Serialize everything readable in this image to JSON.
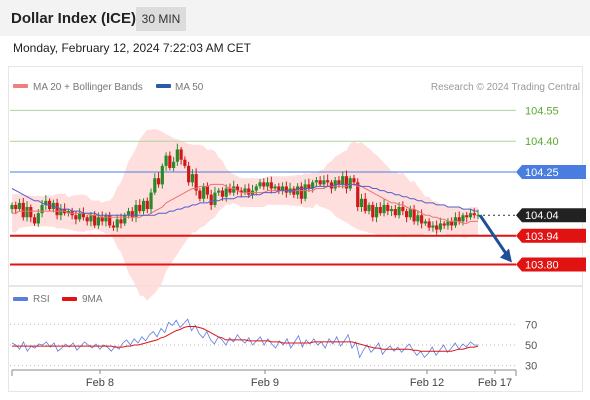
{
  "header": {
    "title": "Dollar Index (ICE)",
    "timeframe": "30 MIN"
  },
  "datetime": "Monday, February 12, 2024 7:22:03 AM CET",
  "credit": "Research © 2024 Trading Central",
  "colors": {
    "up": "#2a8a2a",
    "down": "#d01818",
    "neutral": "#222222",
    "resistance_line": "#a9d79a",
    "pivot_line": "#4a7de0",
    "support_line": "#e01212",
    "bollinger_fill": "#ffd8d8",
    "ma20": "#f07070",
    "ma50": "#5060c8",
    "arrow": "#1f4f99",
    "rsi": "#5a7ee0",
    "rsi_ma": "#e01212"
  },
  "chart_data": [
    {
      "type": "candlestick",
      "legend": [
        {
          "label": "MA 20 + Bollinger Bands",
          "color": "#f08080"
        },
        {
          "label": "MA 50",
          "color": "#2a5aa8"
        }
      ],
      "x_tick_labels": [
        "Feb 8",
        "Feb 9",
        "Feb 12",
        "Feb 17"
      ],
      "ylim": [
        103.72,
        104.62
      ],
      "levels": [
        {
          "value": 104.55,
          "label": "104.55",
          "kind": "resistance"
        },
        {
          "value": 104.4,
          "label": "104.40",
          "kind": "resistance"
        },
        {
          "value": 104.25,
          "label": "104.25",
          "kind": "pivot"
        },
        {
          "value": 104.04,
          "label": "104.04",
          "kind": "last"
        },
        {
          "value": 103.94,
          "label": "103.94",
          "kind": "support"
        },
        {
          "value": 103.8,
          "label": "103.80",
          "kind": "support"
        }
      ],
      "close_series": [
        104.09,
        104.07,
        104.1,
        104.03,
        104.08,
        104.03,
        104.0,
        104.05,
        104.09,
        104.11,
        104.07,
        104.1,
        104.04,
        104.07,
        104.05,
        104.06,
        104.04,
        104.02,
        104.05,
        104.03,
        104.01,
        104.04,
        103.99,
        104.03,
        104.01,
        104.04,
        103.99,
        103.98,
        104.02,
        104.0,
        104.04,
        104.06,
        104.03,
        104.09,
        104.06,
        104.11,
        104.07,
        104.15,
        104.22,
        104.19,
        104.28,
        104.33,
        104.27,
        104.3,
        104.36,
        104.31,
        104.28,
        104.2,
        104.24,
        104.16,
        104.12,
        104.18,
        104.14,
        104.09,
        104.15,
        104.16,
        104.13,
        104.17,
        104.15,
        104.18,
        104.16,
        104.15,
        104.17,
        104.14,
        104.16,
        104.18,
        104.2,
        104.18,
        104.2,
        104.17,
        104.18,
        104.16,
        104.18,
        104.15,
        104.17,
        104.14,
        104.18,
        104.12,
        104.19,
        104.17,
        104.2,
        104.21,
        104.19,
        104.21,
        104.2,
        104.17,
        104.21,
        104.19,
        104.23,
        104.17,
        104.22,
        104.2,
        104.08,
        104.12,
        104.06,
        104.09,
        104.03,
        104.08,
        104.05,
        104.09,
        104.06,
        104.07,
        104.04,
        104.08,
        104.06,
        104.03,
        104.07,
        104.01,
        104.04,
        104.0,
        104.01,
        103.98,
        103.99,
        103.97,
        104.0,
        103.99,
        104.01,
        103.99,
        104.03,
        104.01,
        104.04,
        104.03,
        104.05,
        104.04,
        104.04
      ],
      "ma20": [
        104.05,
        104.05,
        104.06,
        104.06,
        104.06,
        104.06,
        104.06,
        104.06,
        104.06,
        104.06,
        104.06,
        104.06,
        104.06,
        104.06,
        104.06,
        104.05,
        104.05,
        104.05,
        104.05,
        104.05,
        104.05,
        104.04,
        104.04,
        104.04,
        104.03,
        104.03,
        104.03,
        104.03,
        104.03,
        104.03,
        104.03,
        104.03,
        104.03,
        104.03,
        104.03,
        104.04,
        104.04,
        104.05,
        104.06,
        104.07,
        104.08,
        104.1,
        104.11,
        104.12,
        104.13,
        104.14,
        104.15,
        104.16,
        104.17,
        104.17,
        104.18,
        104.18,
        104.18,
        104.19,
        104.19,
        104.19,
        104.19,
        104.18,
        104.17,
        104.17,
        104.16,
        104.15,
        104.15,
        104.15,
        104.15,
        104.15,
        104.15,
        104.15,
        104.16,
        104.16,
        104.16,
        104.16,
        104.16,
        104.16,
        104.16,
        104.16,
        104.16,
        104.16,
        104.16,
        104.16,
        104.16,
        104.17,
        104.17,
        104.17,
        104.18,
        104.18,
        104.18,
        104.18,
        104.18,
        104.18,
        104.19,
        104.19,
        104.18,
        104.18,
        104.17,
        104.16,
        104.15,
        104.14,
        104.13,
        104.12,
        104.11,
        104.1,
        104.1,
        104.09,
        104.09,
        104.08,
        104.07,
        104.07,
        104.06,
        104.05,
        104.04,
        104.04,
        104.03,
        104.03,
        104.02,
        104.02,
        104.01,
        104.01,
        104.01,
        104.01,
        104.0,
        104.0,
        104.01,
        104.01,
        104.01
      ],
      "ma50": [
        104.17,
        104.16,
        104.15,
        104.14,
        104.13,
        104.12,
        104.11,
        104.11,
        104.1,
        104.09,
        104.09,
        104.08,
        104.08,
        104.07,
        104.07,
        104.07,
        104.06,
        104.06,
        104.06,
        104.05,
        104.05,
        104.05,
        104.05,
        104.04,
        104.04,
        104.04,
        104.04,
        104.04,
        104.04,
        104.04,
        104.04,
        104.04,
        104.04,
        104.04,
        104.04,
        104.04,
        104.04,
        104.04,
        104.04,
        104.05,
        104.05,
        104.05,
        104.06,
        104.06,
        104.07,
        104.07,
        104.08,
        104.08,
        104.09,
        104.09,
        104.1,
        104.1,
        104.1,
        104.11,
        104.11,
        104.11,
        104.12,
        104.12,
        104.12,
        104.12,
        104.13,
        104.13,
        104.13,
        104.13,
        104.14,
        104.14,
        104.14,
        104.15,
        104.15,
        104.15,
        104.15,
        104.16,
        104.16,
        104.16,
        104.16,
        104.16,
        104.17,
        104.17,
        104.17,
        104.17,
        104.17,
        104.18,
        104.18,
        104.18,
        104.18,
        104.18,
        104.19,
        104.19,
        104.19,
        104.19,
        104.19,
        104.19,
        104.19,
        104.18,
        104.18,
        104.18,
        104.17,
        104.17,
        104.16,
        104.16,
        104.15,
        104.15,
        104.14,
        104.14,
        104.13,
        104.13,
        104.12,
        104.12,
        104.11,
        104.11,
        104.1,
        104.1,
        104.1,
        104.09,
        104.09,
        104.09,
        104.08,
        104.08,
        104.08,
        104.08,
        104.07,
        104.07,
        104.07,
        104.06,
        104.06
      ],
      "forecast_arrow": {
        "from": 104.04,
        "to": 103.8
      }
    },
    {
      "type": "line",
      "legend": [
        {
          "label": "RSI",
          "color": "#5a7ee0"
        },
        {
          "label": "9MA",
          "color": "#e01212"
        }
      ],
      "y_tick_labels": [
        "70",
        "50",
        "30"
      ],
      "ylim": [
        20,
        82
      ],
      "rsi": [
        52,
        50,
        46,
        53,
        44,
        49,
        47,
        51,
        50,
        53,
        48,
        52,
        44,
        47,
        51,
        48,
        52,
        45,
        49,
        53,
        50,
        47,
        51,
        46,
        50,
        48,
        44,
        49,
        46,
        52,
        55,
        50,
        56,
        52,
        58,
        54,
        60,
        63,
        58,
        66,
        62,
        72,
        69,
        74,
        67,
        71,
        75,
        64,
        69,
        61,
        57,
        63,
        55,
        51,
        58,
        55,
        50,
        57,
        53,
        60,
        55,
        52,
        57,
        50,
        54,
        58,
        50,
        56,
        51,
        47,
        54,
        50,
        56,
        47,
        53,
        59,
        48,
        55,
        51,
        56,
        50,
        53,
        47,
        56,
        51,
        58,
        49,
        54,
        60,
        47,
        53,
        38,
        45,
        50,
        43,
        47,
        52,
        41,
        46,
        49,
        44,
        48,
        43,
        47,
        51,
        45,
        40,
        44,
        38,
        42,
        48,
        40,
        45,
        50,
        43,
        47,
        52,
        46,
        51,
        48,
        53,
        50,
        50
      ],
      "rsi_ma9": [
        49,
        49,
        49,
        49,
        49,
        49,
        49,
        49,
        49,
        49,
        49,
        49,
        49,
        49,
        49,
        49,
        49,
        49,
        49,
        49,
        49,
        49,
        49,
        49,
        49,
        49,
        49,
        48,
        48,
        48,
        49,
        49,
        50,
        50,
        51,
        52,
        53,
        54,
        55,
        57,
        58,
        60,
        62,
        64,
        65,
        67,
        68,
        68,
        68,
        67,
        66,
        64,
        62,
        60,
        58,
        57,
        55,
        55,
        55,
        55,
        55,
        55,
        54,
        54,
        54,
        54,
        54,
        54,
        53,
        53,
        53,
        52,
        52,
        52,
        52,
        52,
        52,
        52,
        52,
        53,
        53,
        53,
        53,
        53,
        53,
        53,
        53,
        53,
        53,
        53,
        52,
        51,
        50,
        49,
        48,
        47,
        47,
        46,
        46,
        46,
        46,
        46,
        46,
        46,
        46,
        45,
        45,
        44,
        44,
        44,
        44,
        44,
        44,
        44,
        44,
        44,
        45,
        46,
        46,
        47,
        48,
        48,
        49
      ]
    }
  ]
}
